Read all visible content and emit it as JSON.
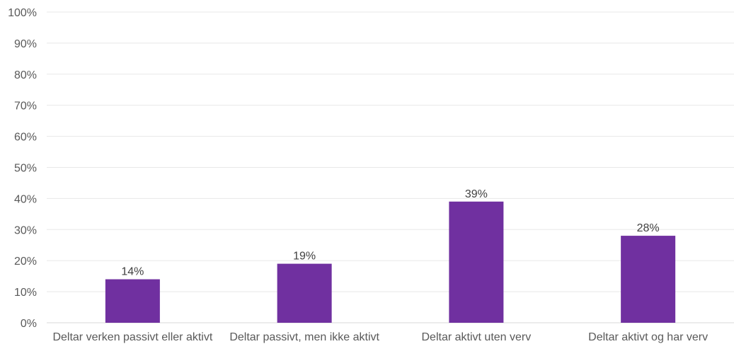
{
  "chart_data": {
    "type": "bar",
    "title": "",
    "xlabel": "",
    "ylabel": "",
    "categories": [
      "Deltar verken passivt eller aktivt",
      "Deltar passivt, men ikke aktivt",
      "Deltar aktivt uten verv",
      "Deltar aktivt og har verv"
    ],
    "values": [
      14,
      19,
      39,
      28
    ],
    "value_labels": [
      "14%",
      "19%",
      "39%",
      "28%"
    ],
    "ylim": [
      0,
      100
    ],
    "yticks": [
      0,
      10,
      20,
      30,
      40,
      50,
      60,
      70,
      80,
      90,
      100
    ],
    "ytick_labels": [
      "0%",
      "10%",
      "20%",
      "30%",
      "40%",
      "50%",
      "60%",
      "70%",
      "80%",
      "90%",
      "100%"
    ],
    "grid": true,
    "legend": "none",
    "colors": {
      "bar": "#7030a0",
      "grid": "#e8e8e8",
      "text": "#595959"
    }
  }
}
